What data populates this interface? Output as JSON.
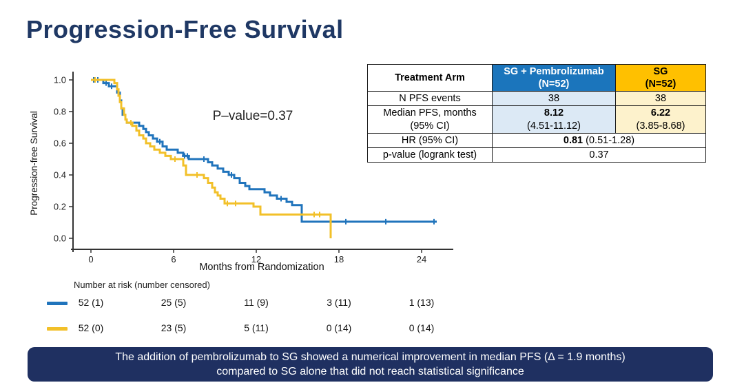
{
  "title": "Progression-Free Survival",
  "chart_data": {
    "type": "line",
    "subtype": "kaplan-meier",
    "xlabel": "Months from Randomization",
    "ylabel": "Progression-free Survival",
    "annotation": "P–value=0.37",
    "xlim": [
      0,
      26
    ],
    "ylim": [
      0.0,
      1.0
    ],
    "xticks": [
      0,
      6,
      12,
      18,
      24
    ],
    "yticks": [
      0.0,
      0.2,
      0.4,
      0.6,
      0.8,
      1.0
    ],
    "grid": false,
    "series": [
      {
        "name": "SG + Pembrolizumab",
        "color": "#2074bc",
        "end_time": 25.1,
        "steps": [
          [
            0,
            1.0
          ],
          [
            0.9,
            0.98
          ],
          [
            1.3,
            0.96
          ],
          [
            1.9,
            0.92
          ],
          [
            2.1,
            0.87
          ],
          [
            2.2,
            0.82
          ],
          [
            2.3,
            0.78
          ],
          [
            2.5,
            0.75
          ],
          [
            2.6,
            0.73
          ],
          [
            3.5,
            0.71
          ],
          [
            3.8,
            0.69
          ],
          [
            4.0,
            0.67
          ],
          [
            4.2,
            0.65
          ],
          [
            4.5,
            0.63
          ],
          [
            4.8,
            0.61
          ],
          [
            5.2,
            0.58
          ],
          [
            5.5,
            0.56
          ],
          [
            6.3,
            0.54
          ],
          [
            6.7,
            0.52
          ],
          [
            7.1,
            0.5
          ],
          [
            8.5,
            0.48
          ],
          [
            8.8,
            0.46
          ],
          [
            9.2,
            0.44
          ],
          [
            9.6,
            0.42
          ],
          [
            10.0,
            0.4
          ],
          [
            10.4,
            0.38
          ],
          [
            10.8,
            0.35
          ],
          [
            11.2,
            0.33
          ],
          [
            11.5,
            0.31
          ],
          [
            12.6,
            0.29
          ],
          [
            13.0,
            0.27
          ],
          [
            13.5,
            0.25
          ],
          [
            14.2,
            0.23
          ],
          [
            14.6,
            0.21
          ],
          [
            15.3,
            0.105
          ]
        ],
        "censors": [
          [
            0.2,
            1.0
          ],
          [
            0.5,
            1.0
          ],
          [
            1.1,
            0.98
          ],
          [
            1.5,
            0.96
          ],
          [
            5.0,
            0.61
          ],
          [
            6.8,
            0.52
          ],
          [
            7.0,
            0.52
          ],
          [
            8.2,
            0.5
          ],
          [
            10.2,
            0.4
          ],
          [
            13.8,
            0.25
          ],
          [
            18.5,
            0.105
          ],
          [
            21.4,
            0.105
          ],
          [
            24.9,
            0.105
          ]
        ]
      },
      {
        "name": "SG",
        "color": "#f2c029",
        "end_time": 17.4,
        "steps": [
          [
            0,
            1.0
          ],
          [
            1.7,
            0.98
          ],
          [
            1.9,
            0.94
          ],
          [
            2.0,
            0.9
          ],
          [
            2.1,
            0.86
          ],
          [
            2.2,
            0.82
          ],
          [
            2.4,
            0.78
          ],
          [
            2.5,
            0.75
          ],
          [
            2.6,
            0.73
          ],
          [
            3.0,
            0.71
          ],
          [
            3.3,
            0.68
          ],
          [
            3.5,
            0.65
          ],
          [
            3.8,
            0.63
          ],
          [
            4.0,
            0.6
          ],
          [
            4.3,
            0.58
          ],
          [
            4.6,
            0.56
          ],
          [
            5.0,
            0.54
          ],
          [
            5.4,
            0.52
          ],
          [
            5.8,
            0.5
          ],
          [
            6.7,
            0.46
          ],
          [
            6.9,
            0.4
          ],
          [
            8.2,
            0.38
          ],
          [
            8.5,
            0.35
          ],
          [
            8.8,
            0.32
          ],
          [
            9.0,
            0.29
          ],
          [
            9.2,
            0.27
          ],
          [
            9.4,
            0.25
          ],
          [
            9.7,
            0.22
          ],
          [
            11.8,
            0.2
          ],
          [
            12.3,
            0.15
          ],
          [
            17.4,
            0.0
          ]
        ],
        "censors": [
          [
            0.3,
            1.0
          ],
          [
            2.9,
            0.73
          ],
          [
            6.1,
            0.5
          ],
          [
            7.7,
            0.4
          ],
          [
            9.9,
            0.22
          ],
          [
            10.5,
            0.22
          ],
          [
            16.2,
            0.15
          ],
          [
            16.6,
            0.15
          ]
        ]
      }
    ]
  },
  "summary_table": {
    "header": {
      "treatment_arm": "Treatment Arm",
      "arm1": "SG + Pembrolizumab\n(N=52)",
      "arm2": "SG\n(N=52)"
    },
    "rows": {
      "events": {
        "label": "N PFS events",
        "arm1": "38",
        "arm2": "38"
      },
      "median": {
        "label": "Median PFS, months\n(95% CI)",
        "arm1_value": "8.12",
        "arm1_ci": "(4.51-11.12)",
        "arm2_value": "6.22",
        "arm2_ci": "(3.85-8.68)"
      },
      "hr": {
        "label": "HR (95% CI)",
        "value_bold": "0.81",
        "value_rest": " (0.51-1.28)"
      },
      "pvalue": {
        "label": "p-value (logrank test)",
        "value": "0.37"
      }
    }
  },
  "risk_table": {
    "title": "Number at risk (number censored)",
    "rows": [
      {
        "series": "SG + Pembrolizumab",
        "values": [
          "52 (1)",
          "25 (5)",
          "11 (9)",
          "3 (11)",
          "1 (13)"
        ]
      },
      {
        "series": "SG",
        "values": [
          "52 (0)",
          "23 (5)",
          "5 (11)",
          "0 (14)",
          "0 (14)"
        ]
      }
    ]
  },
  "banner": {
    "line1": "The addition of pembrolizumab to SG showed a numerical improvement in median PFS (Δ = 1.9 months)",
    "line2": "compared to SG alone that did not reach statistical significance"
  },
  "colors": {
    "title_text": "#1f3864",
    "banner_bg": "#1f3061",
    "banner_text": "#ffffff",
    "header_blue": "#1b75bc",
    "header_gold": "#ffc000",
    "cell_light_blue": "#dce9f5",
    "cell_light_gold": "#fdf2cc",
    "axis": "#333333"
  }
}
